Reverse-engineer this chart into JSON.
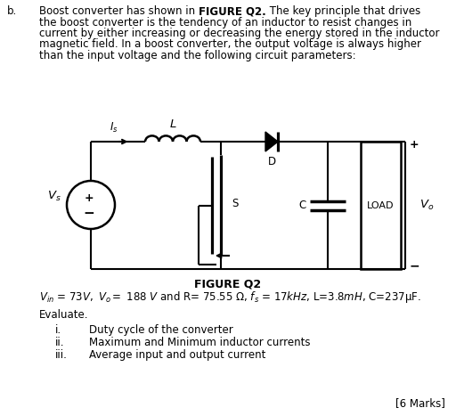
{
  "bg_color": "#ffffff",
  "text_color": "#000000",
  "fig_width": 5.12,
  "fig_height": 4.67,
  "dpi": 100,
  "font_size": 8.5,
  "line1_parts": [
    [
      "Boost converter has shown in ",
      false
    ],
    [
      "FIGURE Q2.",
      true
    ],
    [
      " The key principle that drives",
      false
    ]
  ],
  "line2": "the boost converter is the tendency of an inductor to resist changes in",
  "line3": "current by either increasing or decreasing the energy stored in the inductor",
  "line4": "magnetic field. In a boost converter, the output voltage is always higher",
  "line5": "than the input voltage and the following circuit parameters:",
  "figure_label": "FIGURE Q2",
  "evaluate_label": "Evaluate.",
  "item_i": "i.",
  "item_i_text": "Duty cycle of the converter",
  "item_ii": "ii.",
  "item_ii_text": "Maximum and Minimum inductor currents",
  "item_iii": "iii.",
  "item_iii_text": "Average input and output current",
  "marks": "[6 Marks]",
  "lw": 1.5,
  "lc": "#000000"
}
